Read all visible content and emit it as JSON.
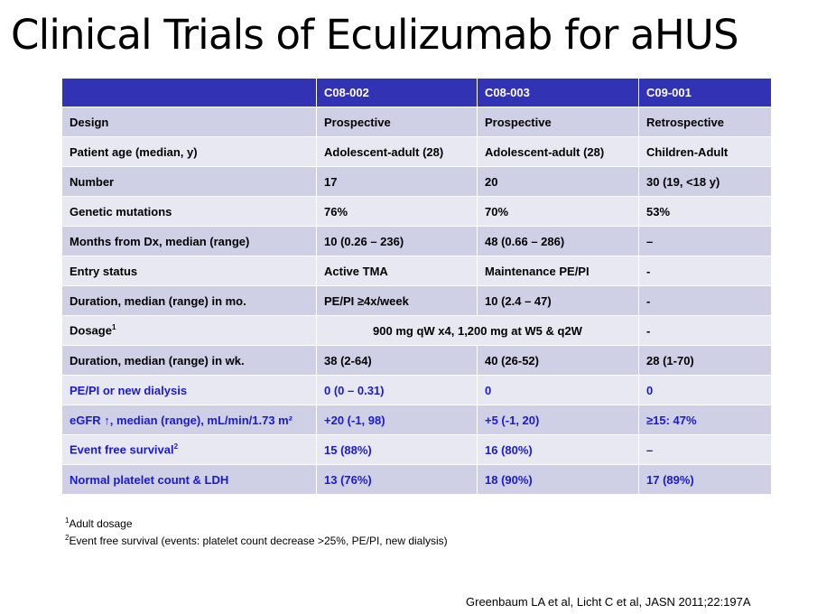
{
  "title": "Clinical Trials of Eculizumab for aHUS",
  "table": {
    "headers": [
      "",
      "C08-002",
      "C08-003",
      "C09-001"
    ],
    "rows": [
      {
        "label": "Design",
        "c1": "Prospective",
        "c2": "Prospective",
        "c3": "Retrospective"
      },
      {
        "label": "Patient age (median, y)",
        "c1": "Adolescent-adult (28)",
        "c2": "Adolescent-adult (28)",
        "c3": "Children-Adult"
      },
      {
        "label": "Number",
        "c1": "17",
        "c2": "20",
        "c3": "30 (19, <18 y)"
      },
      {
        "label": "Genetic mutations",
        "c1": "76%",
        "c2": "70%",
        "c3": "53%"
      },
      {
        "label": "Months from Dx, median (range)",
        "c1": "10 (0.26 – 236)",
        "c2": "48 (0.66 – 286)",
        "c3": "–"
      },
      {
        "label": "Entry status",
        "c1": "Active TMA",
        "c2": "Maintenance PE/PI",
        "c3": "-"
      },
      {
        "label": "Duration, median (range) in mo.",
        "c1": "PE/PI ≥4x/week",
        "c2": "10 (2.4 – 47)",
        "c3": "-"
      },
      {
        "label": "Dosage",
        "label_sup": "1",
        "merged": "900 mg qW x4, 1,200 mg at W5 & q2W",
        "c3": "-"
      },
      {
        "label": "Duration, median (range) in wk.",
        "c1": "38 (2-64)",
        "c2": "40 (26-52)",
        "c3": "28 (1-70)"
      },
      {
        "label": "PE/PI or new dialysis",
        "c1": "0 (0 – 0.31)",
        "c2": "0",
        "c3": "0"
      },
      {
        "label": "eGFR ↑, median (range), mL/min/1.73 m²",
        "c1": "+20 (-1, 98)",
        "c2": "+5 (-1, 20)",
        "c3": "≥15: 47%"
      },
      {
        "label": "Event free survival",
        "label_sup": "2",
        "c1": "15 (88%)",
        "c2": "16 (80%)",
        "c3": "–"
      },
      {
        "label": "Normal platelet count & LDH",
        "c1": "13 (76%)",
        "c2": "18 (90%)",
        "c3": "17 (89%)"
      }
    ]
  },
  "footnotes": [
    {
      "sup": "1",
      "text": "Adult dosage"
    },
    {
      "sup": "2",
      "text": "Event free survival (events: platelet count decrease >25%, PE/PI, new dialysis)"
    }
  ],
  "citation": "Greenbaum LA et al, Licht C et al, JASN 2011;22:197A",
  "colors": {
    "header_bg": "#3232b4",
    "row_dark": "#cfd0e6",
    "row_light": "#e7e8f2",
    "blue_text": "#1a1ad0"
  }
}
